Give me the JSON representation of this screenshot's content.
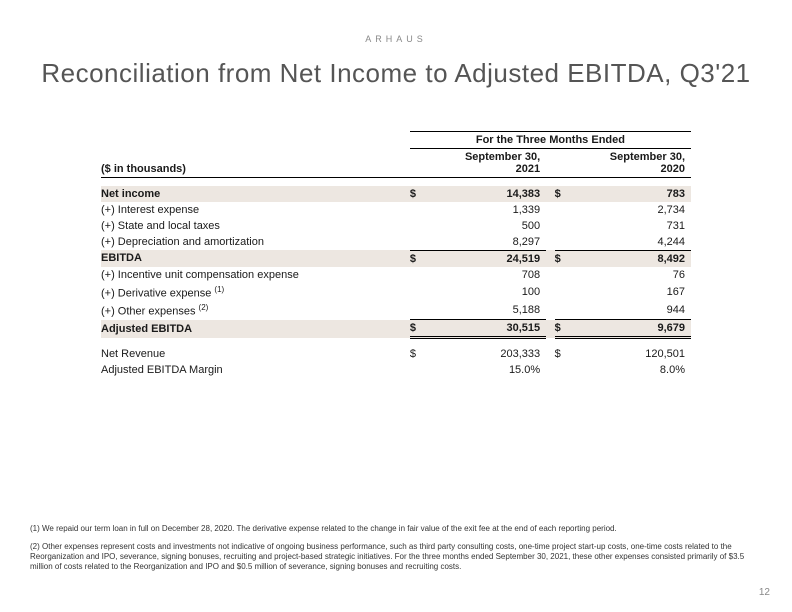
{
  "brand": "ARHAUS",
  "title": "Reconciliation from Net Income to Adjusted EBITDA, Q3'21",
  "period_header": "For the Three Months Ended",
  "units_label": "($ in thousands)",
  "col1_date": "September 30,",
  "col1_year": "2021",
  "col2_date": "September 30,",
  "col2_year": "2020",
  "rows": {
    "net_income": {
      "label": "Net income",
      "sym": "$",
      "v1": "14,383",
      "v2": "783"
    },
    "interest": {
      "label": "(+) Interest expense",
      "sym": "",
      "v1": "1,339",
      "v2": "2,734"
    },
    "state_tax": {
      "label": "(+) State and local taxes",
      "sym": "",
      "v1": "500",
      "v2": "731"
    },
    "da": {
      "label": "(+) Depreciation and amortization",
      "sym": "",
      "v1": "8,297",
      "v2": "4,244"
    },
    "ebitda": {
      "label": "EBITDA",
      "sym": "$",
      "v1": "24,519",
      "v2": "8,492"
    },
    "incentive": {
      "label": "(+) Incentive unit compensation expense",
      "sym": "",
      "v1": "708",
      "v2": "76"
    },
    "derivative": {
      "label": "(+) Derivative expense ",
      "sup": "(1)",
      "sym": "",
      "v1": "100",
      "v2": "167"
    },
    "other": {
      "label": "(+) Other expenses ",
      "sup": "(2)",
      "sym": "",
      "v1": "5,188",
      "v2": "944"
    },
    "adj_ebitda": {
      "label": "Adjusted EBITDA",
      "sym": "$",
      "v1": "30,515",
      "v2": "9,679"
    },
    "net_revenue": {
      "label": "Net Revenue",
      "sym": "$",
      "v1": "203,333",
      "v2": "120,501"
    },
    "margin": {
      "label": "Adjusted EBITDA Margin",
      "sym": "",
      "v1": "15.0%",
      "v2": "8.0%"
    }
  },
  "footnote1": "(1) We repaid our term loan in full on December 28, 2020. The derivative expense related to the change in fair value of the exit fee at the end of each reporting period.",
  "footnote2": "(2) Other expenses represent costs and investments not indicative of ongoing business performance, such as third party consulting costs, one-time project start-up costs, one-time costs related to the Reorganization and IPO, severance, signing bonuses, recruiting and project-based strategic initiatives.  For the three months ended September 30, 2021, these other expenses consisted primarily of $3.5 million of costs related to the Reorganization and IPO and $0.5 million of severance, signing bonuses and recruiting costs.",
  "page_number": "12"
}
